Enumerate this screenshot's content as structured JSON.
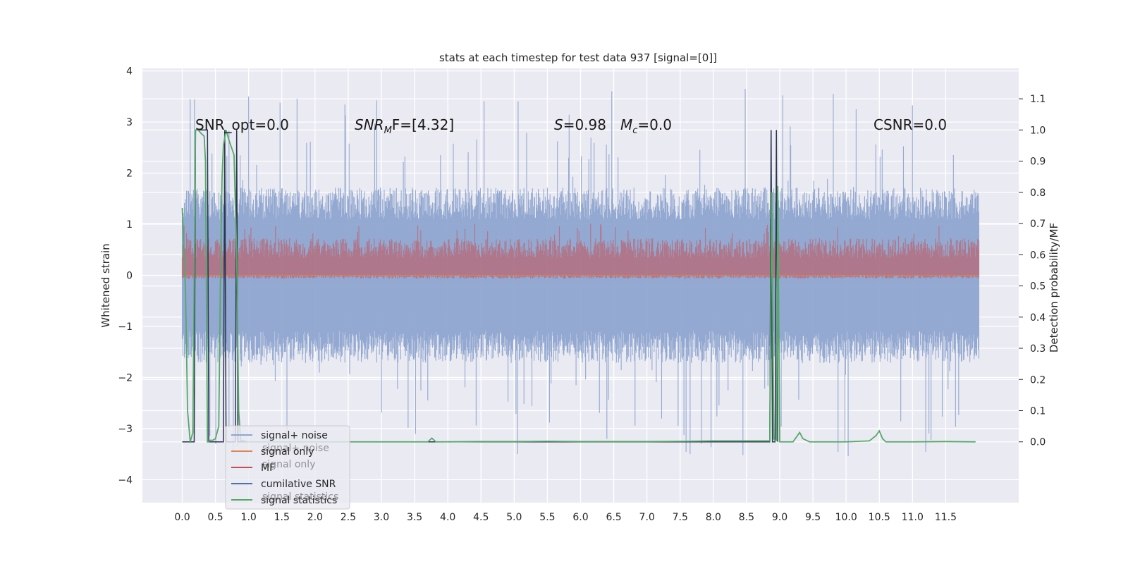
{
  "chart_data": {
    "type": "line",
    "title": "stats at each timestep for test data 937 [signal=[0]]",
    "ylabel": "Whitened strain",
    "y2label": "Detection probability/MF",
    "xlim": [
      -0.6,
      12.6
    ],
    "ylim": [
      -4.45,
      4.05
    ],
    "y2lim": [
      -0.195,
      1.1975
    ],
    "xticks": [
      0.0,
      0.5,
      1.0,
      1.5,
      2.0,
      2.5,
      3.0,
      3.5,
      4.0,
      4.5,
      5.0,
      5.5,
      6.0,
      6.5,
      7.0,
      7.5,
      8.0,
      8.5,
      9.0,
      9.5,
      10.0,
      10.5,
      11.0,
      11.5
    ],
    "xtick_labels": [
      "0.0",
      "0.5",
      "1.0",
      "1.5",
      "2.0",
      "2.5",
      "3.0",
      "3.5",
      "4.0",
      "4.5",
      "5.0",
      "5.5",
      "6.0",
      "6.5",
      "7.0",
      "7.5",
      "8.0",
      "8.5",
      "9.0",
      "9.5",
      "10.0",
      "10.5",
      "11.0",
      "11.5"
    ],
    "yticks": [
      4,
      3,
      2,
      1,
      0,
      -1,
      -2,
      -3,
      -4
    ],
    "ytick_labels": [
      "4",
      "3",
      "2",
      "1",
      "0",
      "−1",
      "−2",
      "−3",
      "−4"
    ],
    "y2ticks": [
      1.1,
      1.0,
      0.9,
      0.8,
      0.7,
      0.6,
      0.5,
      0.4,
      0.3,
      0.2,
      0.1,
      0.0
    ],
    "y2tick_labels": [
      "1.1",
      "1.0",
      "0.9",
      "0.8",
      "0.7",
      "0.6",
      "0.5",
      "0.4",
      "0.3",
      "0.2",
      "0.1",
      "0.0"
    ],
    "grid": true,
    "legend_position": "lower-left",
    "annotations": {
      "snr_opt": "SNR_opt=0.0",
      "snr_mf_base": "SNR",
      "snr_mf_sub": "M",
      "snr_mf_rest": "F=[4.32]",
      "s_italic": "S",
      "s_rest": "=0.98",
      "mc_italic": "M",
      "mc_sub": "c",
      "mc_rest": "=0.0",
      "csnr": "CSNR=0.0"
    },
    "legend": [
      {
        "label": "signal+ noise",
        "color": "#8fa5cf"
      },
      {
        "label": "signal only",
        "color": "#dd8452"
      },
      {
        "label": "MF",
        "color": "#c44e52"
      },
      {
        "label": "cumilative SNR",
        "color": "#4c72b0"
      },
      {
        "label": "signal statistics",
        "color": "#55a868"
      }
    ],
    "legend_ghost_labels": [
      "signal+ noise",
      "signal only",
      "signal statistics"
    ],
    "series": [
      {
        "name": "signal+ noise",
        "axis": "left",
        "color": "#8fa5cf",
        "x_range": [
          0.0,
          12.0
        ],
        "envelope": {
          "upper_mean": 1.45,
          "upper_peak": 3.6,
          "lower_mean": -1.45,
          "lower_peak": -3.55
        },
        "highlights": [
          {
            "x": 1.0,
            "y": 3.5
          },
          {
            "x": 6.47,
            "y": 3.6
          },
          {
            "x": 8.48,
            "y": 3.65
          },
          {
            "x": 5.05,
            "y": -3.5
          },
          {
            "x": 7.65,
            "y": -3.5
          },
          {
            "x": 7.82,
            "y": -3.3
          }
        ]
      },
      {
        "name": "signal only",
        "axis": "left",
        "color": "#dd8452",
        "x": [
          0.0,
          12.0
        ],
        "y": [
          0.0,
          0.0
        ]
      },
      {
        "name": "MF",
        "axis": "right",
        "color": "#c44e52",
        "x_range": [
          0.0,
          12.0
        ],
        "band": {
          "low": 0.535,
          "high": 0.655,
          "peak": 0.7
        }
      },
      {
        "name": "cumilative SNR",
        "axis": "right",
        "color": "#2a3550",
        "x": [
          0.0,
          0.1,
          0.18,
          0.2,
          0.38,
          0.4,
          0.42,
          0.62,
          0.64,
          0.66,
          0.8,
          0.82,
          0.84,
          8.85,
          8.87,
          8.89,
          8.93,
          8.95,
          8.97
        ],
        "y": [
          0.0,
          0.0,
          0.0,
          1.0,
          1.0,
          0.0,
          0.0,
          0.0,
          1.0,
          0.0,
          0.0,
          1.0,
          0.0,
          0.0,
          1.0,
          0.0,
          0.0,
          1.0,
          0.0
        ]
      },
      {
        "name": "signal statistics",
        "axis": "right",
        "color": "#55a868",
        "x": [
          0.0,
          0.05,
          0.08,
          0.12,
          0.16,
          0.2,
          0.24,
          0.28,
          0.33,
          0.35,
          0.38,
          0.4,
          0.42,
          0.46,
          0.5,
          0.55,
          0.58,
          0.6,
          0.62,
          0.66,
          0.7,
          0.78,
          0.82,
          0.85,
          0.88,
          1.0,
          2.0,
          3.0,
          3.7,
          3.76,
          3.82,
          3.9,
          4.5,
          5.0,
          5.5,
          6.0,
          7.0,
          7.6,
          8.0,
          8.5,
          8.85,
          8.88,
          8.91,
          8.93,
          8.95,
          8.97,
          9.0,
          9.1,
          9.2,
          9.3,
          9.35,
          9.45,
          10.0,
          10.35,
          10.45,
          10.5,
          10.55,
          10.6,
          11.0,
          11.5,
          11.95
        ],
        "y": [
          0.75,
          0.48,
          0.1,
          0.0,
          0.03,
          1.0,
          1.0,
          0.99,
          0.98,
          0.9,
          0.0,
          0.0,
          0.005,
          0.005,
          0.01,
          0.05,
          0.6,
          0.85,
          0.95,
          1.0,
          0.97,
          0.92,
          0.6,
          0.1,
          0.005,
          0.0,
          0.0,
          0.0,
          0.0,
          0.012,
          0.0,
          0.0,
          0.001,
          0.001,
          0.002,
          0.001,
          0.001,
          0.002,
          0.003,
          0.003,
          0.003,
          0.8,
          0.01,
          0.003,
          0.005,
          0.82,
          0.0,
          0.0,
          0.0,
          0.03,
          0.01,
          0.0,
          0.0,
          0.003,
          0.02,
          0.035,
          0.01,
          0.0,
          0.0,
          0.001,
          0.0
        ]
      }
    ]
  }
}
